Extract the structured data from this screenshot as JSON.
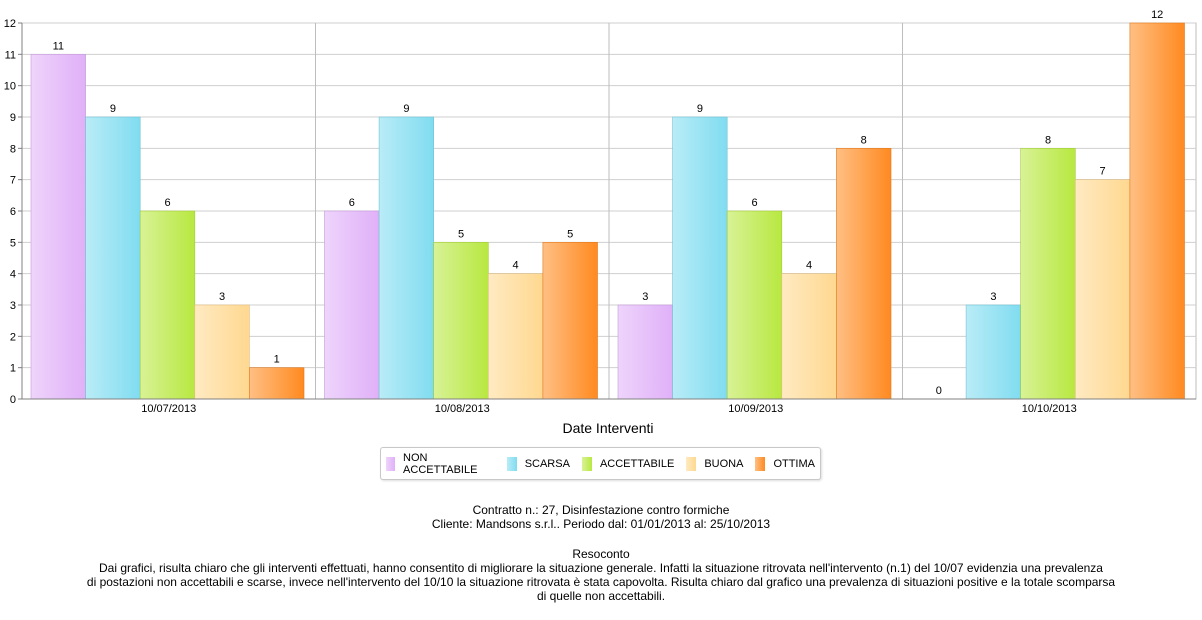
{
  "chart_data": {
    "type": "bar",
    "categories": [
      "10/07/2013",
      "10/08/2013",
      "10/09/2013",
      "10/10/2013"
    ],
    "series": [
      {
        "name": "NON ACCETTABILE",
        "color": "#e0b0f8",
        "values": [
          11,
          6,
          3,
          0
        ]
      },
      {
        "name": "SCARSA",
        "color": "#80dcf0",
        "values": [
          9,
          9,
          9,
          3
        ]
      },
      {
        "name": "ACCETTABILE",
        "color": "#b8e840",
        "values": [
          6,
          5,
          6,
          8
        ]
      },
      {
        "name": "BUONA",
        "color": "#ffd890",
        "values": [
          3,
          4,
          4,
          7
        ]
      },
      {
        "name": "OTTIMA",
        "color": "#ff8a20",
        "values": [
          1,
          5,
          8,
          12
        ]
      }
    ],
    "xlabel": "Date Interventi",
    "ylabel": "",
    "ylim": [
      0,
      12
    ],
    "yticks": [
      0,
      1,
      2,
      3,
      4,
      5,
      6,
      7,
      8,
      9,
      10,
      11,
      12
    ],
    "grid": true,
    "legend_position": "bottom"
  },
  "info": {
    "contract": "Contratto n.: 27, Disinfestazione contro formiche",
    "client": "Cliente: Mandsons s.r.l.. Periodo dal: 01/01/2013 al: 25/10/2013",
    "summary_title": "Resoconto",
    "summary_line1": "Dai grafici, risulta chiaro che gli interventi effettuati, hanno consentito di migliorare la situazione generale. Infatti la situazione ritrovata nell'intervento (n.1) del 10/07 evidenzia una prevalenza",
    "summary_line2": "di postazioni non accettabili e scarse, invece nell'intervento del 10/10 la situazione ritrovata è stata capovolta. Risulta chiaro dal grafico una prevalenza di situazioni positive e la totale scomparsa",
    "summary_line3": "di quelle non accettabili."
  }
}
